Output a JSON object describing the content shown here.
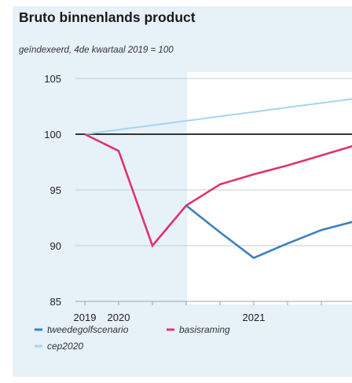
{
  "chart_data": {
    "type": "line",
    "title": "Bruto binnenlands product",
    "subtitle": "geïndexeerd, 4de kwartaal 2019 = 100",
    "xlabel": "",
    "ylabel": "",
    "ylim": [
      85,
      105
    ],
    "yticks": [
      105,
      100,
      95,
      90,
      85
    ],
    "xticks": [
      "2019",
      "2020",
      "2021"
    ],
    "x": [
      "2019-Q4",
      "2020-Q1",
      "2020-Q2",
      "2020-Q3",
      "2020-Q4",
      "2021-Q1",
      "2021-Q2",
      "2021-Q3",
      "2021-Q4",
      "2022-Q1"
    ],
    "grid": true,
    "reference_line": 100,
    "series": [
      {
        "name": "cep2020",
        "color": "#a6d4ef",
        "values": [
          100.0,
          100.4,
          100.8,
          101.2,
          101.6,
          102.0,
          102.4,
          102.8,
          103.2,
          null
        ]
      },
      {
        "name": "basisraming",
        "color": "#e0336e",
        "values": [
          100.0,
          98.5,
          90.0,
          93.6,
          95.5,
          96.4,
          97.2,
          98.1,
          99.0,
          null
        ]
      },
      {
        "name": "tweedegolfscenario",
        "color": "#3d7fc1",
        "values": [
          null,
          null,
          null,
          93.6,
          91.2,
          88.9,
          90.2,
          91.4,
          92.2,
          null
        ]
      }
    ],
    "legend": {
      "placement": "bottom-left",
      "entries": [
        "tweedegolfscenario",
        "basisraming",
        "cep2020"
      ]
    }
  }
}
